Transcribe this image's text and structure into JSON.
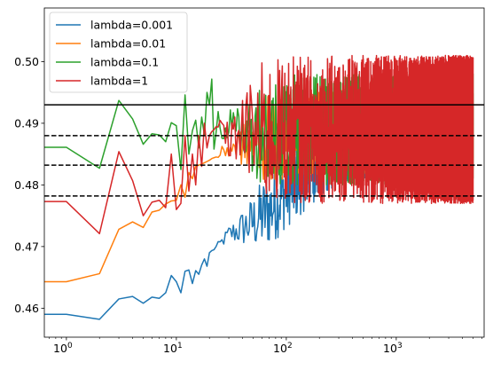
{
  "chart_data": {
    "type": "line",
    "title": "",
    "xlabel": "",
    "ylabel": "",
    "xscale": "log",
    "xlim": [
      0.63,
      6300
    ],
    "ylim": [
      0.4553,
      0.5087
    ],
    "x_ticks": [
      {
        "value": 1,
        "base": "10",
        "exp": "0"
      },
      {
        "value": 10,
        "base": "10",
        "exp": "1"
      },
      {
        "value": 100,
        "base": "10",
        "exp": "2"
      },
      {
        "value": 1000,
        "base": "10",
        "exp": "3"
      }
    ],
    "y_ticks": [
      "0.46",
      "0.47",
      "0.48",
      "0.49",
      "0.50"
    ],
    "grid": false,
    "legend": {
      "position": "upper-left"
    },
    "series": [
      {
        "name": "lambda=0.001",
        "color": "#1f77b4",
        "x": [
          0,
          1,
          2,
          3,
          4,
          5,
          6,
          7,
          8,
          9,
          10,
          11,
          12,
          13,
          14,
          15,
          16,
          17,
          18,
          19,
          20,
          30,
          50,
          70,
          100,
          150,
          200,
          300,
          500,
          700,
          1000,
          2000,
          3000,
          5000
        ],
        "y": [
          0.459,
          0.459,
          0.4582,
          0.4615,
          0.4619,
          0.4608,
          0.4618,
          0.4616,
          0.4625,
          0.4653,
          0.4643,
          0.4625,
          0.466,
          0.4662,
          0.464,
          0.4661,
          0.4655,
          0.467,
          0.468,
          0.4668,
          0.469,
          0.472,
          0.474,
          0.476,
          0.479,
          0.482,
          0.484,
          0.486,
          0.487,
          0.488,
          0.4885,
          0.4888,
          0.489,
          0.489
        ],
        "noise": 0.006
      },
      {
        "name": "lambda=0.01",
        "color": "#ff7f0e",
        "x": [
          0,
          1,
          2,
          3,
          4,
          5,
          6,
          7,
          8,
          9,
          10,
          11,
          12,
          13,
          14,
          15,
          20,
          30,
          50,
          100,
          200,
          500,
          1000,
          5000
        ],
        "y": [
          0.4643,
          0.4643,
          0.4656,
          0.4728,
          0.474,
          0.4731,
          0.4756,
          0.4759,
          0.4769,
          0.4774,
          0.4775,
          0.48,
          0.478,
          0.482,
          0.481,
          0.483,
          0.484,
          0.486,
          0.487,
          0.488,
          0.4885,
          0.4888,
          0.489,
          0.489
        ],
        "noise": 0.007
      },
      {
        "name": "lambda=0.1",
        "color": "#2ca02c",
        "x": [
          0,
          1,
          2,
          3,
          4,
          5,
          6,
          7,
          8,
          9,
          10,
          11,
          12,
          13,
          14,
          15,
          16,
          17,
          18,
          19,
          20,
          21,
          22,
          24,
          26,
          30,
          40,
          60,
          100,
          200,
          500,
          1000,
          5000
        ],
        "y": [
          0.4861,
          0.4861,
          0.4827,
          0.4937,
          0.4907,
          0.4866,
          0.4883,
          0.4881,
          0.487,
          0.4901,
          0.4896,
          0.4825,
          0.4946,
          0.485,
          0.4888,
          0.4905,
          0.486,
          0.491,
          0.488,
          0.495,
          0.493,
          0.4973,
          0.486,
          0.492,
          0.488,
          0.49,
          0.488,
          0.489,
          0.489,
          0.489,
          0.489,
          0.489,
          0.489
        ],
        "noise": 0.009
      },
      {
        "name": "lambda=1",
        "color": "#d62728",
        "x": [
          0,
          1,
          2,
          3,
          4,
          5,
          6,
          7,
          8,
          9,
          10,
          11,
          12,
          13,
          14,
          15,
          16,
          17,
          18,
          19,
          20,
          25,
          30,
          40,
          60,
          100,
          200,
          500,
          1000,
          5000
        ],
        "y": [
          0.4773,
          0.4773,
          0.4721,
          0.4854,
          0.4807,
          0.475,
          0.4772,
          0.4775,
          0.4763,
          0.485,
          0.476,
          0.477,
          0.488,
          0.479,
          0.485,
          0.48,
          0.488,
          0.483,
          0.49,
          0.486,
          0.488,
          0.49,
          0.487,
          0.489,
          0.488,
          0.489,
          0.489,
          0.489,
          0.489,
          0.489
        ],
        "noise": 0.012
      }
    ],
    "reference_lines": [
      {
        "y": 0.493,
        "style": "solid",
        "color": "#000000"
      },
      {
        "y": 0.488,
        "style": "dashed",
        "color": "#000000"
      },
      {
        "y": 0.4832,
        "style": "dashed",
        "color": "#000000"
      },
      {
        "y": 0.4782,
        "style": "dashed",
        "color": "#000000"
      }
    ]
  }
}
